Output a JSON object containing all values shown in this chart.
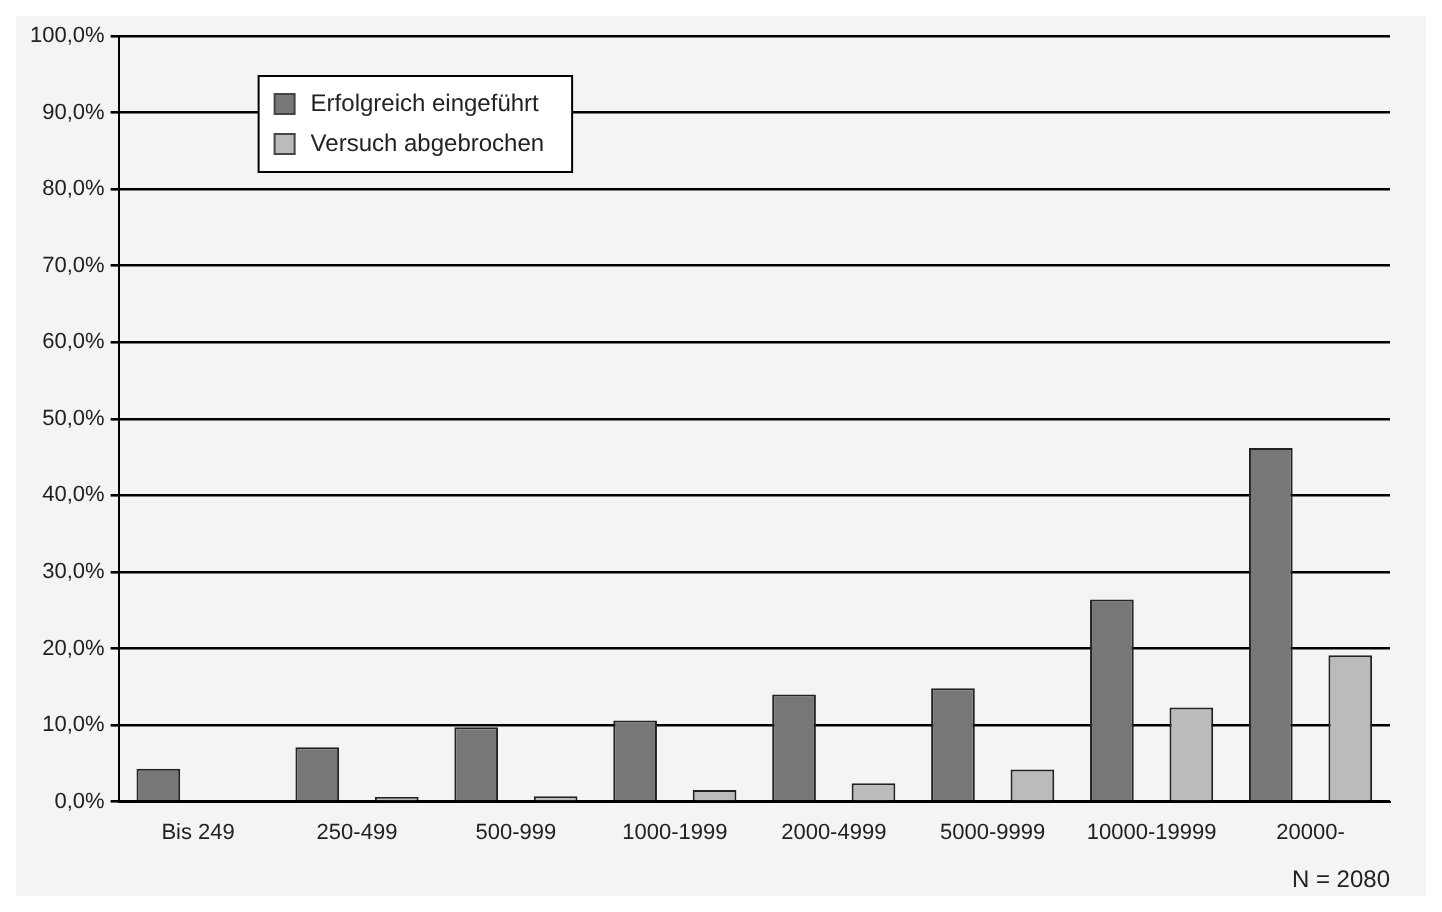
{
  "chart_data": {
    "type": "bar",
    "categories": [
      "Bis 249",
      "250-499",
      "500-999",
      "1000-1999",
      "2000-4999",
      "5000-9999",
      "10000-19999",
      "20000-"
    ],
    "series": [
      {
        "name": "Erfolgreich eingeführt",
        "color": "#777777",
        "values": [
          4.3,
          7.1,
          9.7,
          10.6,
          14.0,
          14.8,
          26.4,
          46.2
        ]
      },
      {
        "name": "Versuch abgebrochen",
        "color": "#bbbbbb",
        "values": [
          0,
          0.6,
          0.7,
          1.5,
          2.4,
          4.2,
          12.3,
          19.1
        ]
      }
    ],
    "ylim": [
      0,
      100
    ],
    "yticks": [
      {
        "value": 0,
        "label": "0,0%"
      },
      {
        "value": 10,
        "label": "10,0%"
      },
      {
        "value": 20,
        "label": "20,0%"
      },
      {
        "value": 30,
        "label": "30,0%"
      },
      {
        "value": 40,
        "label": "40,0%"
      },
      {
        "value": 50,
        "label": "50,0%"
      },
      {
        "value": 60,
        "label": "60,0%"
      },
      {
        "value": 70,
        "label": "70,0%"
      },
      {
        "value": 80,
        "label": "80,0%"
      },
      {
        "value": 90,
        "label": "90,0%"
      },
      {
        "value": 100,
        "label": "100,0%"
      }
    ],
    "grid": "y",
    "legend": "top left",
    "annotations": [
      "N = 2080"
    ]
  }
}
